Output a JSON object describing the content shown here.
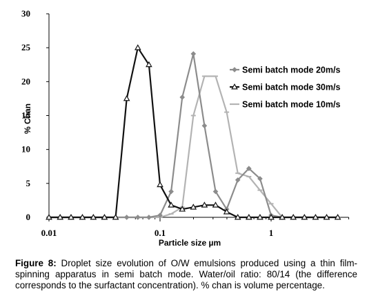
{
  "chart_data": {
    "type": "line",
    "title": "",
    "xlabel": "Particle size µm",
    "ylabel": "% Chan",
    "xscale": "log",
    "xlim": [
      0.01,
      5
    ],
    "ylim": [
      0,
      30
    ],
    "xticks": [
      {
        "value": 0.01,
        "label": "0.01"
      },
      {
        "value": 0.1,
        "label": "0.1"
      },
      {
        "value": 1,
        "label": "1"
      }
    ],
    "yticks": [
      {
        "value": 0,
        "label": "0"
      },
      {
        "value": 5,
        "label": "5"
      },
      {
        "value": 10,
        "label": "10"
      },
      {
        "value": 15,
        "label": "15"
      },
      {
        "value": 20,
        "label": "20"
      },
      {
        "value": 25,
        "label": "25"
      },
      {
        "value": 30,
        "label": "30"
      }
    ],
    "grid": false,
    "legend_position": "right",
    "x": [
      0.01,
      0.0126,
      0.0158,
      0.02,
      0.0251,
      0.0316,
      0.0398,
      0.0501,
      0.0631,
      0.0794,
      0.1,
      0.1259,
      0.1585,
      0.1995,
      0.2512,
      0.3162,
      0.3981,
      0.5012,
      0.631,
      0.7943,
      1.0,
      1.2589,
      1.5849,
      1.9953,
      2.5119,
      3.1623,
      3.9811
    ],
    "series": [
      {
        "name": "Semi batch mode 20m/s",
        "color": "#8c8c8c",
        "marker": "diamond",
        "values": [
          0,
          0,
          0,
          0,
          0,
          0,
          0,
          0,
          0,
          0,
          0.3,
          3.8,
          17.7,
          24.1,
          13.5,
          3.8,
          1.2,
          5.5,
          7.2,
          5.7,
          0.3,
          0,
          0,
          0,
          0,
          0,
          0
        ]
      },
      {
        "name": "Semi batch mode 30m/s",
        "color": "#111111",
        "marker": "triangle",
        "values": [
          0,
          0,
          0,
          0,
          0,
          0,
          0,
          17.5,
          25.0,
          22.5,
          4.8,
          1.8,
          1.2,
          1.5,
          1.8,
          1.8,
          0.8,
          0,
          0,
          0,
          0,
          0,
          0,
          0,
          0,
          0,
          0
        ]
      },
      {
        "name": "Semi batch mode 10m/s",
        "color": "#b3b3b3",
        "marker": "dash",
        "values": [
          0,
          0,
          0,
          0,
          0,
          0,
          0,
          0,
          0,
          0,
          0,
          0.5,
          1.5,
          15.0,
          20.8,
          20.8,
          15.5,
          6.5,
          6.0,
          4.0,
          2.0,
          0,
          0,
          0,
          0,
          0,
          0
        ]
      }
    ]
  },
  "caption": {
    "label": "Figure 8:",
    "text": " Droplet size evolution of O/W emulsions produced using a thin film-spinning apparatus in semi batch mode. Water/oil ratio: 80/14 (the difference corresponds to the surfactant concentration). % chan is volume percentage."
  }
}
